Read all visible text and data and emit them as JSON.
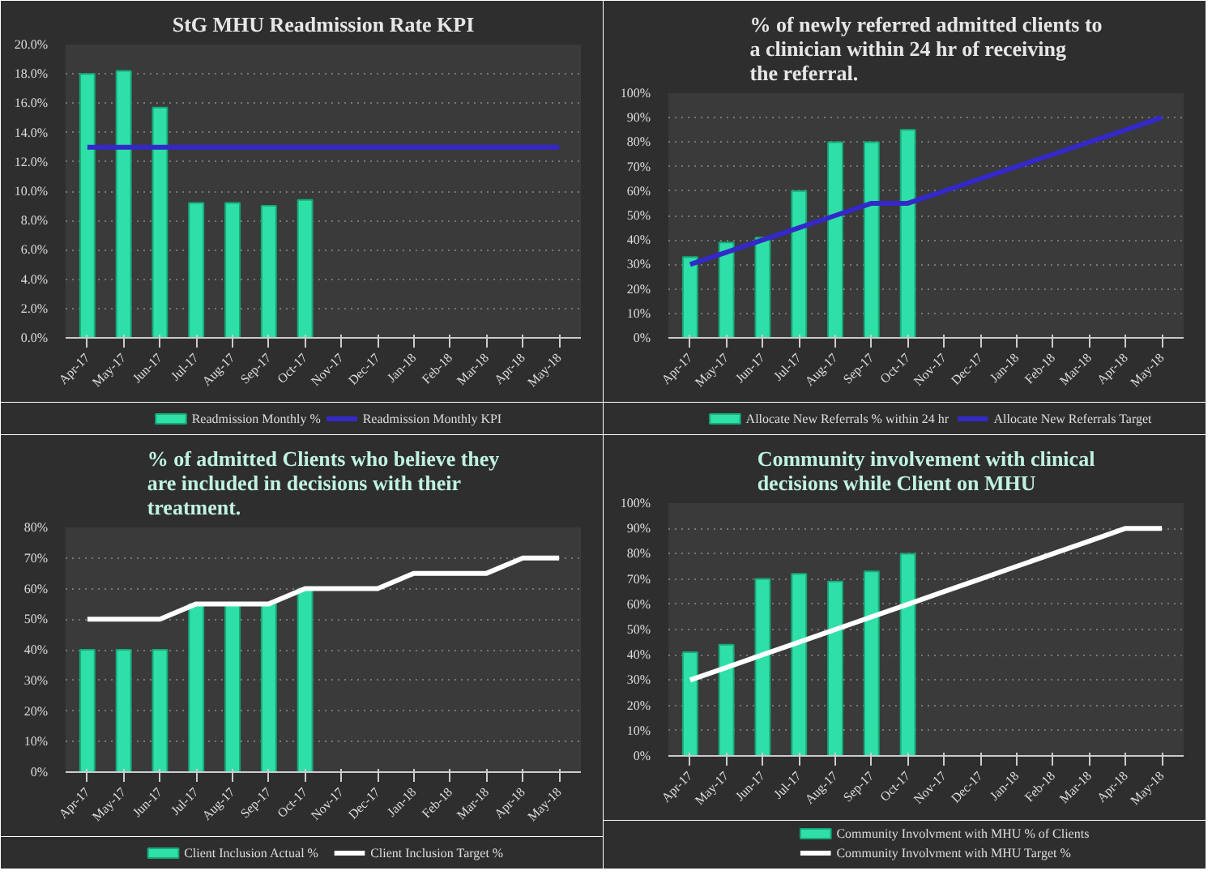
{
  "chart_data": [
    {
      "type": "bar",
      "title": "StG MHU Readmission Rate KPI",
      "categories": [
        "Apr-17",
        "May-17",
        "Jun-17",
        "Jul-17",
        "Aug-17",
        "Sep-17",
        "Oct-17",
        "Nov-17",
        "Dec-17",
        "Jan-18",
        "Feb-18",
        "Mar-18",
        "Apr-18",
        "May-18"
      ],
      "series": [
        {
          "name": "Readmission  Monthly %",
          "color": "#2ee0a8",
          "values": [
            18.0,
            18.2,
            15.7,
            9.2,
            9.2,
            9.0,
            9.4,
            null,
            null,
            null,
            null,
            null,
            null,
            null
          ]
        },
        {
          "name": "Readmission   Monthly KPI",
          "type": "line",
          "color": "#3428c8",
          "values": [
            13.0,
            13.0,
            13.0,
            13.0,
            13.0,
            13.0,
            13.0,
            13.0,
            13.0,
            13.0,
            13.0,
            13.0,
            13.0,
            13.0
          ]
        }
      ],
      "ylim": [
        0,
        20
      ],
      "yticks": [
        {
          "value": 0,
          "label": "0.0%"
        },
        {
          "value": 2,
          "label": "2.0%"
        },
        {
          "value": 4,
          "label": "4.0%"
        },
        {
          "value": 6,
          "label": "6.0%"
        },
        {
          "value": 8,
          "label": "8.0%"
        },
        {
          "value": 10,
          "label": "10.0%"
        },
        {
          "value": 12,
          "label": "12.0%"
        },
        {
          "value": 14,
          "label": "14.0%"
        },
        {
          "value": 16,
          "label": "16.0%"
        },
        {
          "value": 18,
          "label": "18.0%"
        },
        {
          "value": 20,
          "label": "20.0%"
        }
      ],
      "grid": "y",
      "legend": "bottom"
    },
    {
      "type": "bar",
      "title": "% of newly referred admitted clients to a clinician within 24 hr of receiving the referral.",
      "categories": [
        "Apr-17",
        "May-17",
        "Jun-17",
        "Jul-17",
        "Aug-17",
        "Sep-17",
        "Oct-17",
        "Nov-17",
        "Dec-17",
        "Jan-18",
        "Feb-18",
        "Mar-18",
        "Apr-18",
        "May-18"
      ],
      "series": [
        {
          "name": "Allocate New Referrals % within 24 hr",
          "color": "#2ee0a8",
          "values": [
            33,
            39,
            41,
            60,
            80,
            80,
            85,
            null,
            null,
            null,
            null,
            null,
            null,
            null
          ]
        },
        {
          "name": "Allocate New Referrals Target",
          "type": "line",
          "color": "#3428c8",
          "values": [
            30,
            35,
            40,
            45,
            50,
            55,
            55,
            60,
            65,
            70,
            75,
            80,
            85,
            90
          ]
        }
      ],
      "ylim": [
        0,
        100
      ],
      "yticks": [
        {
          "value": 0,
          "label": "0%"
        },
        {
          "value": 10,
          "label": "10%"
        },
        {
          "value": 20,
          "label": "20%"
        },
        {
          "value": 30,
          "label": "30%"
        },
        {
          "value": 40,
          "label": "40%"
        },
        {
          "value": 50,
          "label": "50%"
        },
        {
          "value": 60,
          "label": "60%"
        },
        {
          "value": 70,
          "label": "70%"
        },
        {
          "value": 80,
          "label": "80%"
        },
        {
          "value": 90,
          "label": "90%"
        },
        {
          "value": 100,
          "label": "100%"
        }
      ],
      "grid": "y",
      "legend": "bottom"
    },
    {
      "type": "bar",
      "title": "% of admitted Clients who believe they are included in decisions with their treatment.",
      "categories": [
        "Apr-17",
        "May-17",
        "Jun-17",
        "Jul-17",
        "Aug-17",
        "Sep-17",
        "Oct-17",
        "Nov-17",
        "Dec-17",
        "Jan-18",
        "Feb-18",
        "Mar-18",
        "Apr-18",
        "May-18"
      ],
      "series": [
        {
          "name": "Client Inclusion Actual %",
          "color": "#2ee0a8",
          "values": [
            40,
            40,
            40,
            55,
            55,
            55,
            60,
            null,
            null,
            null,
            null,
            null,
            null,
            null
          ]
        },
        {
          "name": "Client Inclusion Target %",
          "type": "line",
          "color": "#ffffff",
          "values": [
            50,
            50,
            50,
            55,
            55,
            55,
            60,
            60,
            60,
            65,
            65,
            65,
            70,
            70
          ]
        }
      ],
      "ylim": [
        0,
        80
      ],
      "yticks": [
        {
          "value": 0,
          "label": "0%"
        },
        {
          "value": 10,
          "label": "10%"
        },
        {
          "value": 20,
          "label": "20%"
        },
        {
          "value": 30,
          "label": "30%"
        },
        {
          "value": 40,
          "label": "40%"
        },
        {
          "value": 50,
          "label": "50%"
        },
        {
          "value": 60,
          "label": "60%"
        },
        {
          "value": 70,
          "label": "70%"
        },
        {
          "value": 80,
          "label": "80%"
        }
      ],
      "grid": "y",
      "legend": "bottom"
    },
    {
      "type": "bar",
      "title": "Community involvement with clinical decisions while Client on MHU",
      "categories": [
        "Apr-17",
        "May-17",
        "Jun-17",
        "Jul-17",
        "Aug-17",
        "Sep-17",
        "Oct-17",
        "Nov-17",
        "Dec-17",
        "Jan-18",
        "Feb-18",
        "Mar-18",
        "Apr-18",
        "May-18"
      ],
      "series": [
        {
          "name": "Community Involvment with MHU % of Clients",
          "color": "#2ee0a8",
          "values": [
            41,
            44,
            70,
            72,
            69,
            73,
            80,
            null,
            null,
            null,
            null,
            null,
            null,
            null
          ]
        },
        {
          "name": "Community Involvment with MHU Target %",
          "type": "line",
          "color": "#ffffff",
          "values": [
            30,
            35,
            40,
            45,
            50,
            55,
            60,
            65,
            70,
            75,
            80,
            85,
            90,
            90
          ]
        }
      ],
      "ylim": [
        0,
        100
      ],
      "yticks": [
        {
          "value": 0,
          "label": "0%"
        },
        {
          "value": 10,
          "label": "10%"
        },
        {
          "value": 20,
          "label": "20%"
        },
        {
          "value": 30,
          "label": "30%"
        },
        {
          "value": 40,
          "label": "40%"
        },
        {
          "value": 50,
          "label": "50%"
        },
        {
          "value": 60,
          "label": "60%"
        },
        {
          "value": 70,
          "label": "70%"
        },
        {
          "value": 80,
          "label": "80%"
        },
        {
          "value": 90,
          "label": "90%"
        },
        {
          "value": 100,
          "label": "100%"
        }
      ],
      "grid": "y",
      "legend": "bottom"
    }
  ]
}
